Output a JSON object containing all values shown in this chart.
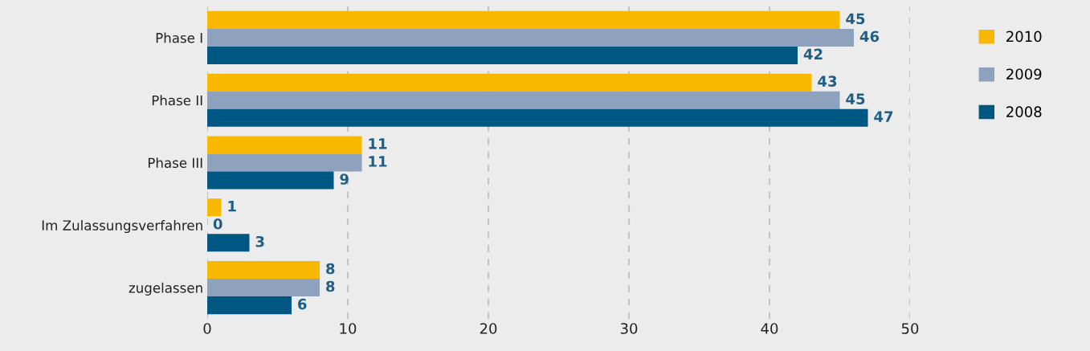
{
  "chart_data": {
    "type": "bar",
    "orientation": "horizontal",
    "categories": [
      "Phase I",
      "Phase II",
      "Phase III",
      "Im Zulassungsverfahren",
      "zugelassen"
    ],
    "series": [
      {
        "name": "2010",
        "color": "#f9b800",
        "values": [
          45,
          43,
          11,
          1,
          8
        ]
      },
      {
        "name": "2009",
        "color": "#8fa2bd",
        "values": [
          46,
          45,
          11,
          0,
          8
        ]
      },
      {
        "name": "2008",
        "color": "#005781",
        "values": [
          42,
          47,
          9,
          3,
          6
        ]
      }
    ],
    "xlim": [
      0,
      50
    ],
    "xticks": [
      0,
      10,
      20,
      30,
      40,
      50
    ],
    "grid": "x",
    "legend": "right",
    "data_labels": true
  }
}
